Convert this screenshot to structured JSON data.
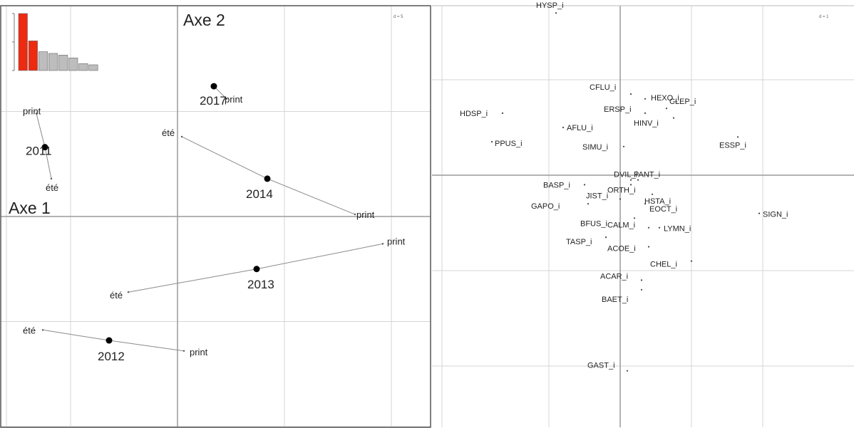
{
  "chart_data": [
    {
      "type": "scatter",
      "axis1_label": "Axe 1",
      "axis2_label": "Axe 2",
      "d_label": "d = 5",
      "eigenvalues": {
        "colors": {
          "selected": "#ee2a10",
          "other": "#bdbdbd"
        },
        "values": [
          100,
          52,
          33,
          30,
          27,
          22,
          12,
          10
        ],
        "n_selected": 2
      },
      "years": [
        {
          "year": "2011",
          "center": {
            "label": "2011",
            "x": -6.2,
            "y": 3.3
          },
          "ete": {
            "label": "été",
            "x": -5.9,
            "y": 1.8
          },
          "print": {
            "label": "print",
            "x": -6.6,
            "y": 4.9
          }
        },
        {
          "year": "2012",
          "center": {
            "label": "2012",
            "x": -3.2,
            "y": -5.9
          },
          "ete": {
            "label": "été",
            "x": -6.3,
            "y": -5.4
          },
          "print": {
            "label": "print",
            "x": 0.3,
            "y": -6.4
          }
        },
        {
          "year": "2013",
          "center": {
            "label": "2013",
            "x": 3.7,
            "y": -2.5
          },
          "ete": {
            "label": "été",
            "x": -2.3,
            "y": -3.6
          },
          "print": {
            "label": "print",
            "x": 9.6,
            "y": -1.3
          }
        },
        {
          "year": "2014",
          "center": {
            "label": "2014",
            "x": 4.2,
            "y": 1.8
          },
          "ete": {
            "label": "été",
            "x": 0.2,
            "y": 3.8
          },
          "print": {
            "label": "print",
            "x": 8.3,
            "y": 0.1
          }
        },
        {
          "year": "2017",
          "center": {
            "label": "2017",
            "x": 1.7,
            "y": 6.2
          },
          "print": {
            "label": "print",
            "x": 2.3,
            "y": 5.6
          }
        }
      ]
    },
    {
      "type": "scatter",
      "d_label": "d = 1",
      "points": [
        {
          "label": "HYSP_i",
          "x": -1.8,
          "y": 3.4
        },
        {
          "label": "CFLU_i",
          "x": 0.3,
          "y": 1.7
        },
        {
          "label": "HEXO_i",
          "x": 0.7,
          "y": 1.6
        },
        {
          "label": "CLEP_i",
          "x": 1.3,
          "y": 1.4
        },
        {
          "label": "ERSP_i",
          "x": 0.7,
          "y": 1.3
        },
        {
          "label": "HDSP_i",
          "x": -3.3,
          "y": 1.3
        },
        {
          "label": "HINV_i",
          "x": 1.5,
          "y": 1.2
        },
        {
          "label": "AFLU_i",
          "x": -1.6,
          "y": 1.0
        },
        {
          "label": "PPUS_i",
          "x": -3.6,
          "y": 0.7
        },
        {
          "label": "SIMU_i",
          "x": 0.1,
          "y": 0.6
        },
        {
          "label": "ESSP_i",
          "x": 3.3,
          "y": 0.8
        },
        {
          "label": "DVIL_i",
          "x": 0.3,
          "y": -0.1
        },
        {
          "label": "PANT_i",
          "x": 0.5,
          "y": -0.1
        },
        {
          "label": "BASP_i",
          "x": -1.0,
          "y": -0.2
        },
        {
          "label": "ORTH_i",
          "x": 0.3,
          "y": -0.2
        },
        {
          "label": "HSTA_i",
          "x": 0.9,
          "y": -0.4
        },
        {
          "label": "JIST_i",
          "x": 0.0,
          "y": -0.5
        },
        {
          "label": "GAPO_i",
          "x": -0.9,
          "y": -0.6
        },
        {
          "label": "EOCT_i",
          "x": 0.7,
          "y": -0.6
        },
        {
          "label": "BFUS_i",
          "x": 0.4,
          "y": -0.9
        },
        {
          "label": "SIGN_i",
          "x": 3.9,
          "y": -0.8
        },
        {
          "label": "CALM_i",
          "x": 0.8,
          "y": -1.1
        },
        {
          "label": "LYMN_i",
          "x": 1.1,
          "y": -1.1
        },
        {
          "label": "TASP_i",
          "x": -0.4,
          "y": -1.3
        },
        {
          "label": "ACOE_i",
          "x": 0.8,
          "y": -1.5
        },
        {
          "label": "CHEL_i",
          "x": 2.0,
          "y": -1.8
        },
        {
          "label": "ACAR_i",
          "x": 0.6,
          "y": -2.2
        },
        {
          "label": "BAET_i",
          "x": 0.6,
          "y": -2.4
        },
        {
          "label": "GAST_i",
          "x": 0.2,
          "y": -4.1
        }
      ]
    }
  ]
}
